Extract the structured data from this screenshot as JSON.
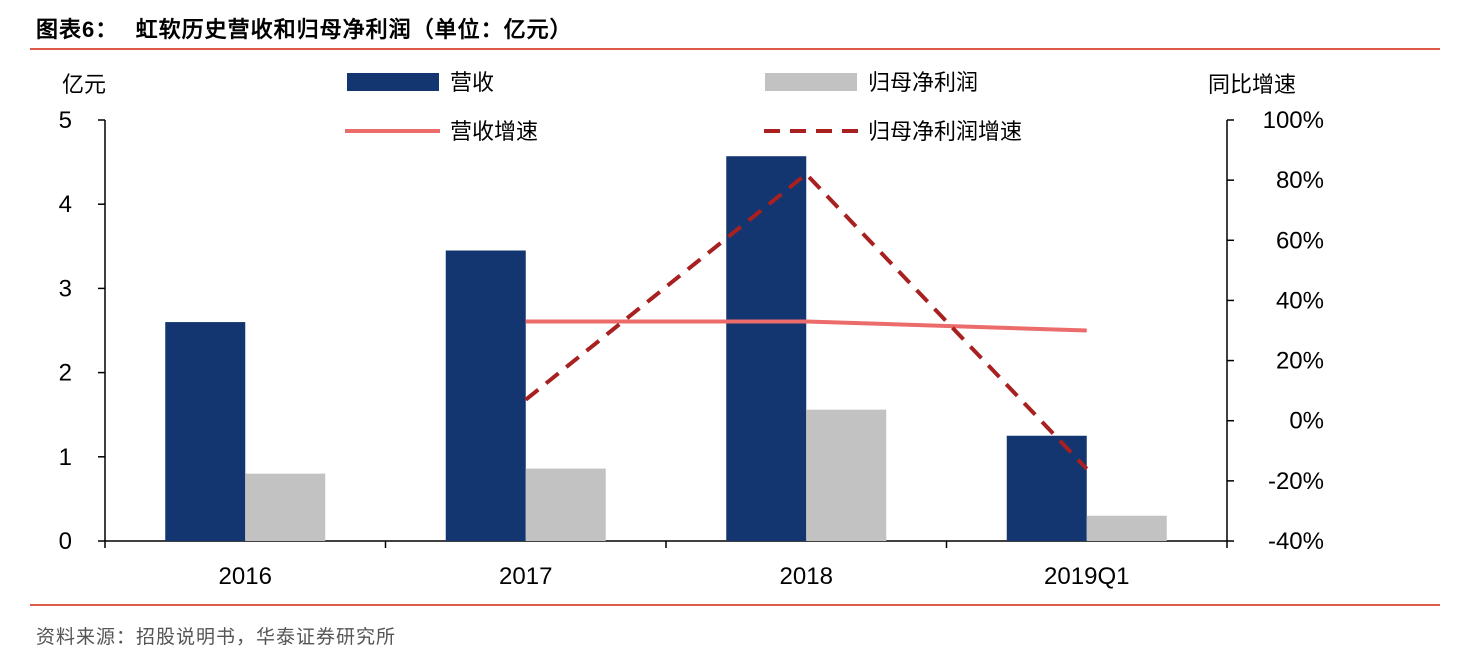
{
  "header": {
    "label": "图表",
    "number": "6",
    "colon": "：",
    "title": "虹软历史营收和归母净利润（单位：亿元）"
  },
  "footer": {
    "source": "资料来源：招股说明书，华泰证券研究所"
  },
  "colors": {
    "revenue": "#143670",
    "profit": "#c2c2c2",
    "revenue_growth": "#ec6b6b",
    "profit_growth": "#a8201f",
    "rule": "#e05a4c"
  },
  "chart_data": {
    "type": "bar",
    "categories": [
      "2016",
      "2017",
      "2018",
      "2019Q1"
    ],
    "series": [
      {
        "name": "营收",
        "type": "bar",
        "axis": "left",
        "values": [
          2.6,
          3.45,
          4.57,
          1.25
        ]
      },
      {
        "name": "归母净利润",
        "type": "bar",
        "axis": "left",
        "values": [
          0.8,
          0.86,
          1.56,
          0.3
        ]
      },
      {
        "name": "营收增速",
        "type": "line",
        "axis": "right",
        "values": [
          null,
          0.33,
          0.33,
          0.3
        ]
      },
      {
        "name": "归母净利润增速",
        "type": "line",
        "axis": "right",
        "dashed": true,
        "values": [
          null,
          0.07,
          0.82,
          -0.16
        ]
      }
    ],
    "ylabel": "亿元",
    "y2label": "同比增速",
    "ylim": [
      0,
      5
    ],
    "y2lim": [
      -0.4,
      1.0
    ],
    "yticks": [
      "0",
      "1",
      "2",
      "3",
      "4",
      "5"
    ],
    "y2ticks": [
      "-40%",
      "-20%",
      "0%",
      "20%",
      "40%",
      "60%",
      "80%",
      "100%"
    ],
    "legend_position": "top",
    "grid": false
  }
}
